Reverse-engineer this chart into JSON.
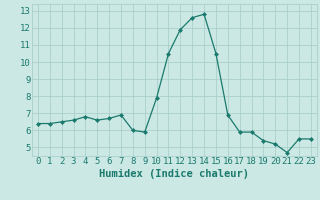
{
  "x": [
    0,
    1,
    2,
    3,
    4,
    5,
    6,
    7,
    8,
    9,
    10,
    11,
    12,
    13,
    14,
    15,
    16,
    17,
    18,
    19,
    20,
    21,
    22,
    23
  ],
  "y": [
    6.4,
    6.4,
    6.5,
    6.6,
    6.8,
    6.6,
    6.7,
    6.9,
    6.0,
    5.9,
    7.9,
    10.5,
    11.9,
    12.6,
    12.8,
    10.5,
    6.9,
    5.9,
    5.9,
    5.4,
    5.2,
    4.7,
    5.5,
    5.5
  ],
  "line_color": "#1a7a6e",
  "marker": "D",
  "marker_size": 2.0,
  "bg_color": "#cce8e4",
  "grid_color": "#aacfcb",
  "xlabel": "Humidex (Indice chaleur)",
  "ylim": [
    4.5,
    13.4
  ],
  "xlim": [
    -0.5,
    23.5
  ],
  "yticks": [
    5,
    6,
    7,
    8,
    9,
    10,
    11,
    12,
    13
  ],
  "xticks": [
    0,
    1,
    2,
    3,
    4,
    5,
    6,
    7,
    8,
    9,
    10,
    11,
    12,
    13,
    14,
    15,
    16,
    17,
    18,
    19,
    20,
    21,
    22,
    23
  ],
  "tick_color": "#1a7a6e",
  "label_color": "#1a7a6e",
  "tick_fontsize": 6.5,
  "xlabel_fontsize": 7.5
}
